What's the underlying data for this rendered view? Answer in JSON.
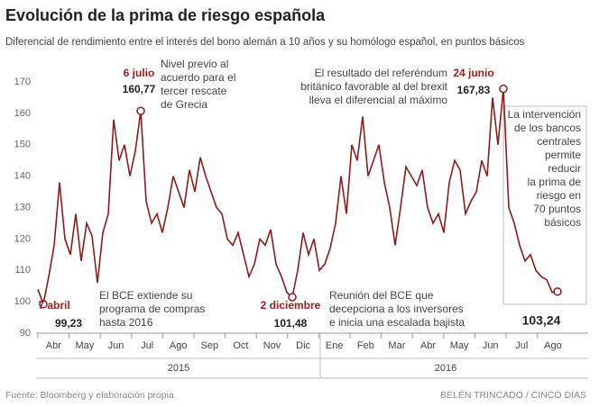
{
  "chart_data": {
    "type": "line",
    "title": "Evolución de la prima de riesgo española",
    "subtitle": "Diferencial de rendimiento entre el interés del bono alemán a 10 años y su homólogo español, en puntos básicos",
    "months": [
      "Abr",
      "May",
      "Jun",
      "Jul",
      "Ago",
      "Sep",
      "Oct",
      "Nov",
      "Dic",
      "Ene",
      "Feb",
      "Mar",
      "Abr",
      "May",
      "Jun",
      "Jul",
      "Ago"
    ],
    "years": [
      "2015",
      "2016"
    ],
    "series": [
      {
        "color": "#8b1c1c",
        "values": [
          104,
          99.23,
          108,
          118,
          138,
          120,
          115,
          128,
          113,
          125,
          121,
          106,
          122,
          128,
          158,
          145,
          150,
          140,
          148,
          160.77,
          132,
          125,
          128,
          122,
          130,
          140,
          135,
          130,
          142,
          135,
          146,
          140,
          135,
          130,
          128,
          120,
          118,
          122,
          115,
          108,
          112,
          120,
          118,
          123,
          112,
          108,
          103,
          101.48,
          110,
          122,
          115,
          120,
          110,
          112,
          117,
          125,
          140,
          128,
          150,
          145,
          159,
          140,
          145,
          150,
          138,
          130,
          118,
          130,
          143,
          140,
          137,
          142,
          130,
          125,
          128,
          122,
          138,
          145,
          142,
          128,
          132,
          135,
          145,
          140,
          165,
          150,
          167.83,
          130,
          125,
          118,
          113,
          115,
          110,
          108,
          107,
          103,
          103.24
        ]
      }
    ],
    "ylim": [
      90,
      170
    ],
    "yticks": [
      90,
      100,
      110,
      120,
      130,
      140,
      150,
      160,
      170
    ],
    "points": [
      {
        "date": "7 abril",
        "value": 99.23,
        "label": "99,23"
      },
      {
        "date": "6 julio",
        "value": 160.77,
        "label": "160,77"
      },
      {
        "date": "2 diciembre",
        "value": 101.48,
        "label": "101,48"
      },
      {
        "date": "24 junio",
        "value": 167.83,
        "label": "167,83"
      },
      {
        "value": 103.24,
        "label": "103,24"
      }
    ],
    "notes": [
      [
        "Nivel previo al",
        "acuerdo para el",
        "tercer rescate",
        "de Grecia"
      ],
      [
        "El resultado del referéndum",
        "británico favorable al del brexit",
        "lleva el diferencial al máximo"
      ],
      [
        "La intervención",
        "de los bancos",
        "centrales",
        "permite",
        "reducir",
        "la prima de",
        "riesgo en",
        "70 puntos",
        "básicos"
      ],
      [
        "El BCE extiende su",
        "programa de compras",
        "hasta 2016"
      ],
      [
        "Reunión del BCE que",
        "decepciona a los inversores",
        "e inicia una escalada bajista"
      ]
    ],
    "source": "Fuente: Bloomberg y elaboración propia",
    "credit": "BELÉN TRINCADO / CINCO DÍAS"
  }
}
